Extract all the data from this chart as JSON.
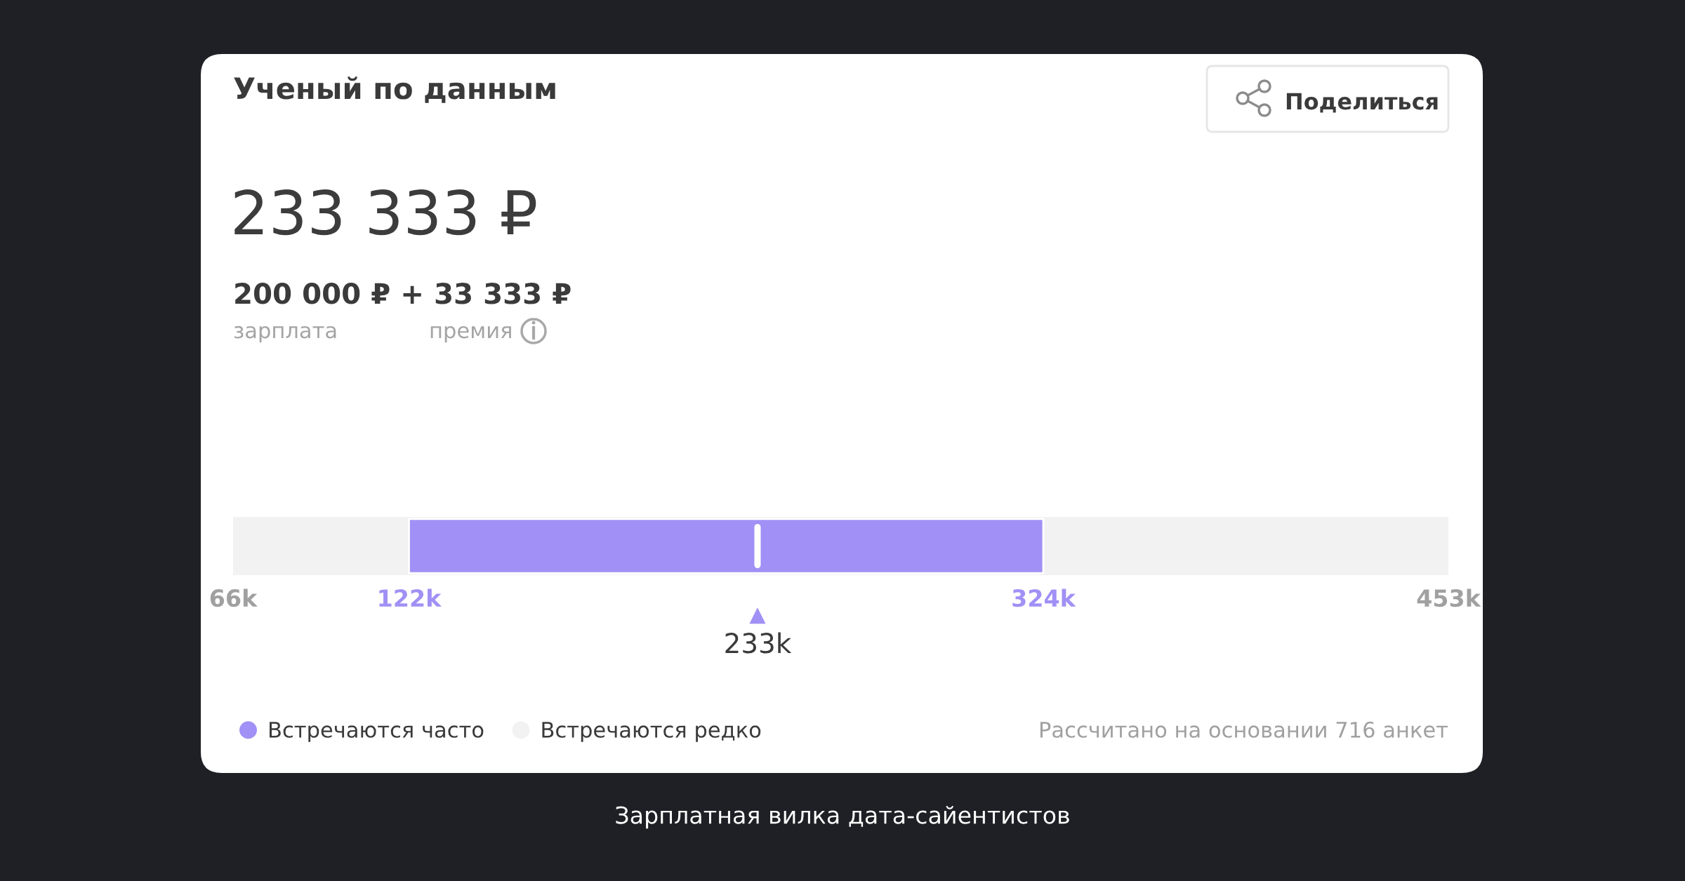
{
  "chart_data": {
    "type": "bar",
    "orientation": "horizontal",
    "title": "Ученый по данным",
    "subtitle": "233 333 ₽",
    "categories": [
      null
    ],
    "series": [
      {
        "name": "Встречаются часто",
        "color": "#a190f5",
        "base": [
          122
        ],
        "values": [
          202
        ]
      },
      {
        "name": "Встречаются редко",
        "color": "#f2f2f2",
        "base": [
          66
        ],
        "values": [
          387
        ]
      }
    ],
    "xlim": [
      66,
      453
    ],
    "xticks": [
      {
        "value": 66,
        "label": "66k"
      },
      {
        "value": 122,
        "label": "122k"
      },
      {
        "value": 324,
        "label": "324k"
      },
      {
        "value": 453,
        "label": "453k"
      }
    ],
    "ref_lines": [
      {
        "axis": "x",
        "value": 233,
        "label": "233k",
        "color": "#ffffff"
      }
    ],
    "annotations": [
      "200 000 ₽ + 33 333 ₽",
      "зарплата",
      "премия",
      "Поделиться",
      "Рассчитано на основании 716 анкет",
      "Зарплатная вилка дата-сайентистов"
    ],
    "legend": "bottom left"
  }
}
